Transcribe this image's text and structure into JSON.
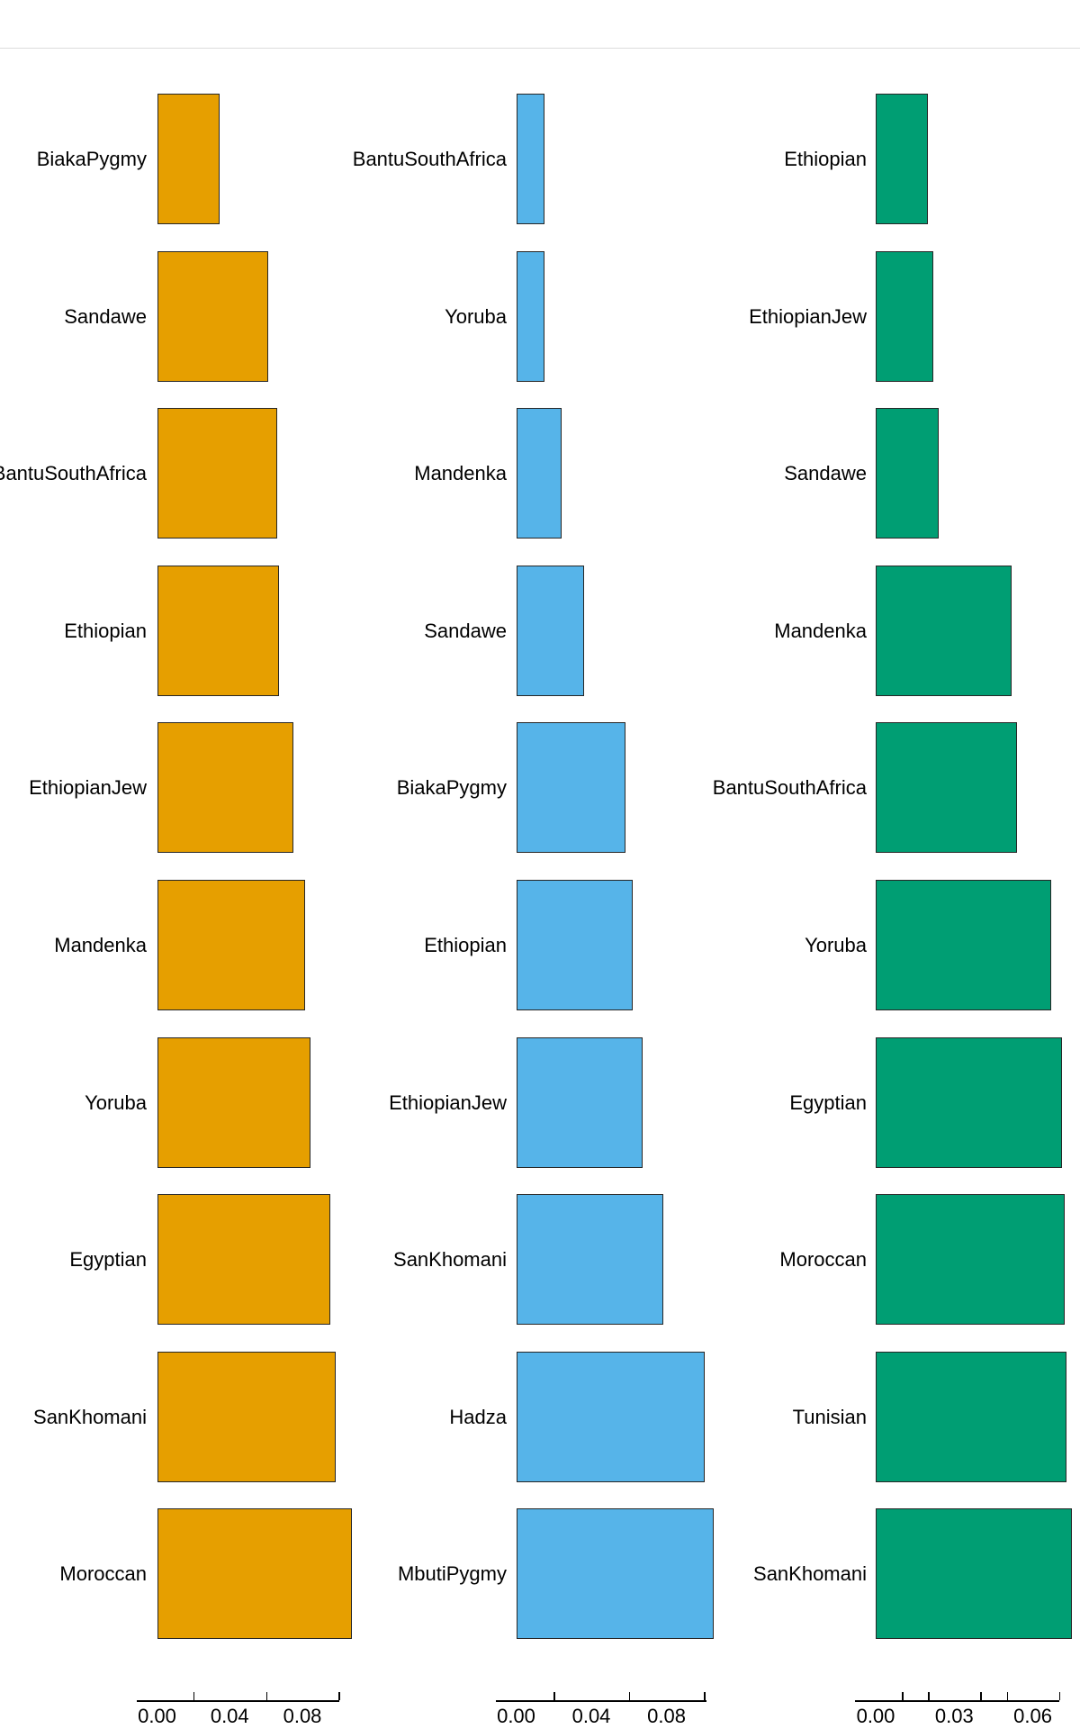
{
  "palette": {
    "panel_colors": [
      "#E69F00",
      "#56B4E9",
      "#009E73"
    ],
    "bar_border": "#262626",
    "axis_color": "#000000",
    "text_color": "#000000",
    "background": "#ffffff"
  },
  "chart_data": [
    {
      "type": "bar",
      "orientation": "horizontal",
      "panel": "left",
      "color": "#E69F00",
      "categories": [
        "BiakaPygmy",
        "Sandawe",
        "BantuSouthAfrica",
        "Ethiopian",
        "EthiopianJew",
        "Mandenka",
        "Yoruba",
        "Egyptian",
        "SanKhomani",
        "Moroccan"
      ],
      "values": [
        0.034,
        0.061,
        0.066,
        0.067,
        0.075,
        0.081,
        0.084,
        0.095,
        0.098,
        0.107
      ],
      "title": "",
      "xlabel": "",
      "ylabel": "",
      "xlim": [
        0,
        0.1
      ],
      "x_axis": {
        "tick_labels": [
          "0.00",
          "0.04",
          "0.08"
        ],
        "tick_values": [
          0,
          0.04,
          0.08
        ],
        "minor_tick_values": [
          0.02,
          0.06,
          0.1
        ]
      },
      "grid": false,
      "legend": false
    },
    {
      "type": "bar",
      "orientation": "horizontal",
      "panel": "middle",
      "color": "#56B4E9",
      "categories": [
        "BantuSouthAfrica",
        "Yoruba",
        "Mandenka",
        "Sandawe",
        "BiakaPygmy",
        "Ethiopian",
        "EthiopianJew",
        "SanKhomani",
        "Hadza",
        "MbutiPygmy"
      ],
      "values": [
        0.015,
        0.015,
        0.024,
        0.036,
        0.058,
        0.062,
        0.067,
        0.078,
        0.1,
        0.105
      ],
      "title": "",
      "xlabel": "",
      "ylabel": "",
      "xlim": [
        0,
        0.1
      ],
      "x_axis": {
        "tick_labels": [
          "0.00",
          "0.04",
          "0.08"
        ],
        "tick_values": [
          0,
          0.04,
          0.08
        ],
        "minor_tick_values": [
          0.02,
          0.06,
          0.1
        ]
      },
      "grid": false,
      "legend": false
    },
    {
      "type": "bar",
      "orientation": "horizontal",
      "panel": "right",
      "color": "#009E73",
      "categories": [
        "Ethiopian",
        "EthiopianJew",
        "Sandawe",
        "Mandenka",
        "BantuSouthAfrica",
        "Yoruba",
        "Egyptian",
        "Moroccan",
        "Tunisian",
        "SanKhomani"
      ],
      "values": [
        0.02,
        0.022,
        0.024,
        0.052,
        0.054,
        0.067,
        0.071,
        0.072,
        0.073,
        0.075
      ],
      "title": "",
      "xlabel": "",
      "ylabel": "",
      "xlim": [
        0,
        0.07
      ],
      "x_axis": {
        "tick_labels": [
          "0.00",
          "0.03",
          "0.06"
        ],
        "tick_values": [
          0,
          0.03,
          0.06
        ],
        "minor_tick_values": [
          0.01,
          0.02,
          0.04,
          0.05,
          0.07
        ]
      },
      "grid": false,
      "legend": false
    }
  ]
}
